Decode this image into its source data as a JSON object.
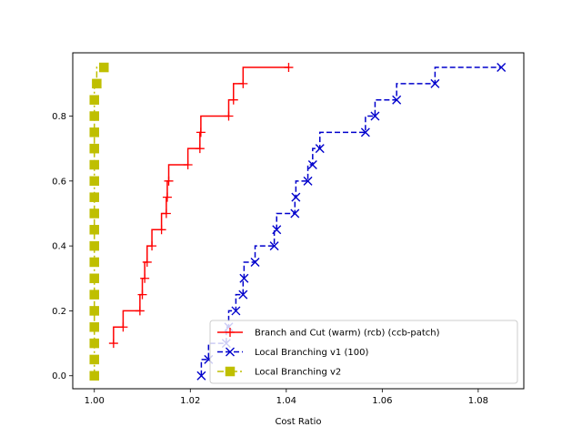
{
  "chart_data": {
    "type": "line",
    "step": true,
    "xlabel": "Cost Ratio",
    "ylabel": "",
    "xlim": [
      0.9955,
      1.0895
    ],
    "ylim": [
      -0.04,
      0.995
    ],
    "x_ticks": [
      1.0,
      1.02,
      1.04,
      1.06,
      1.08
    ],
    "x_tick_labels": [
      "1.00",
      "1.02",
      "1.04",
      "1.06",
      "1.08"
    ],
    "y_ticks": [
      0.0,
      0.2,
      0.4,
      0.6,
      0.8
    ],
    "y_tick_labels": [
      "0.0",
      "0.2",
      "0.4",
      "0.6",
      "0.8"
    ],
    "grid": false,
    "legend_position": "lower-right",
    "series": [
      {
        "name": "Branch and Cut (warm) (rcb) (ccb-patch)",
        "color": "#ff0000",
        "line_style": "solid",
        "marker": "plus",
        "points": [
          [
            1.004,
            0.1
          ],
          [
            1.006,
            0.15
          ],
          [
            1.0095,
            0.2
          ],
          [
            1.01,
            0.25
          ],
          [
            1.0105,
            0.3
          ],
          [
            1.011,
            0.35
          ],
          [
            1.012,
            0.4
          ],
          [
            1.014,
            0.45
          ],
          [
            1.015,
            0.5
          ],
          [
            1.0152,
            0.55
          ],
          [
            1.0155,
            0.6
          ],
          [
            1.0195,
            0.65
          ],
          [
            1.022,
            0.7
          ],
          [
            1.0222,
            0.75
          ],
          [
            1.028,
            0.8
          ],
          [
            1.029,
            0.85
          ],
          [
            1.031,
            0.9
          ],
          [
            1.0405,
            0.95
          ]
        ]
      },
      {
        "name": "Local Branching v1 (100)",
        "color": "#0000cc",
        "line_style": "dashed",
        "marker": "x",
        "points": [
          [
            1.0223,
            0.0
          ],
          [
            1.0238,
            0.05
          ],
          [
            1.0275,
            0.1
          ],
          [
            1.028,
            0.15
          ],
          [
            1.0295,
            0.2
          ],
          [
            1.031,
            0.25
          ],
          [
            1.0312,
            0.3
          ],
          [
            1.0335,
            0.35
          ],
          [
            1.0375,
            0.4
          ],
          [
            1.038,
            0.45
          ],
          [
            1.0418,
            0.5
          ],
          [
            1.042,
            0.55
          ],
          [
            1.0445,
            0.6
          ],
          [
            1.0455,
            0.65
          ],
          [
            1.047,
            0.7
          ],
          [
            1.0565,
            0.75
          ],
          [
            1.0585,
            0.8
          ],
          [
            1.063,
            0.85
          ],
          [
            1.071,
            0.9
          ],
          [
            1.0848,
            0.95
          ]
        ]
      },
      {
        "name": "Local Branching v2",
        "color": "#bfbf00",
        "line_style": "dashdot",
        "marker": "square",
        "points": [
          [
            1.0,
            0.0
          ],
          [
            1.0,
            0.05
          ],
          [
            1.0,
            0.1
          ],
          [
            1.0,
            0.15
          ],
          [
            1.0,
            0.2
          ],
          [
            1.0,
            0.25
          ],
          [
            1.0,
            0.3
          ],
          [
            1.0,
            0.35
          ],
          [
            1.0,
            0.4
          ],
          [
            1.0,
            0.45
          ],
          [
            1.0,
            0.5
          ],
          [
            1.0,
            0.55
          ],
          [
            1.0,
            0.6
          ],
          [
            1.0,
            0.65
          ],
          [
            1.0,
            0.7
          ],
          [
            1.0,
            0.75
          ],
          [
            1.0,
            0.8
          ],
          [
            1.0,
            0.85
          ],
          [
            1.0005,
            0.9
          ],
          [
            1.002,
            0.95
          ]
        ]
      }
    ]
  }
}
